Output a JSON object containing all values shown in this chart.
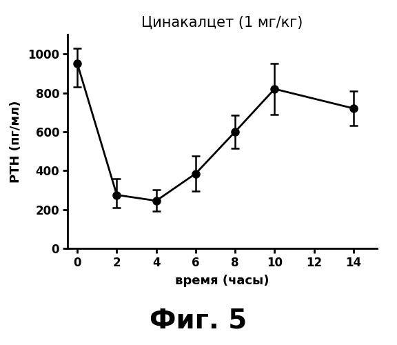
{
  "title": "Цинакалцет (1 мг/кг)",
  "xlabel": "время (часы)",
  "ylabel": "РТН (пг/мл)",
  "fig_label": "Фиг. 5",
  "x": [
    0,
    2,
    4,
    6,
    8,
    10,
    14
  ],
  "y": [
    950,
    275,
    245,
    385,
    600,
    820,
    720
  ],
  "yerr_upper": [
    80,
    85,
    55,
    90,
    85,
    130,
    90
  ],
  "yerr_lower": [
    120,
    65,
    55,
    90,
    85,
    130,
    90
  ],
  "xlim": [
    -0.5,
    15.2
  ],
  "ylim": [
    0,
    1100
  ],
  "yticks": [
    0,
    200,
    400,
    600,
    800,
    1000
  ],
  "xticks": [
    0,
    2,
    4,
    6,
    8,
    10,
    12,
    14
  ],
  "line_color": "black",
  "marker_color": "black",
  "marker_size": 8,
  "line_width": 2.0,
  "title_fontsize": 15,
  "axis_label_fontsize": 13,
  "tick_fontsize": 12,
  "fig_label_fontsize": 28,
  "background_color": "white"
}
